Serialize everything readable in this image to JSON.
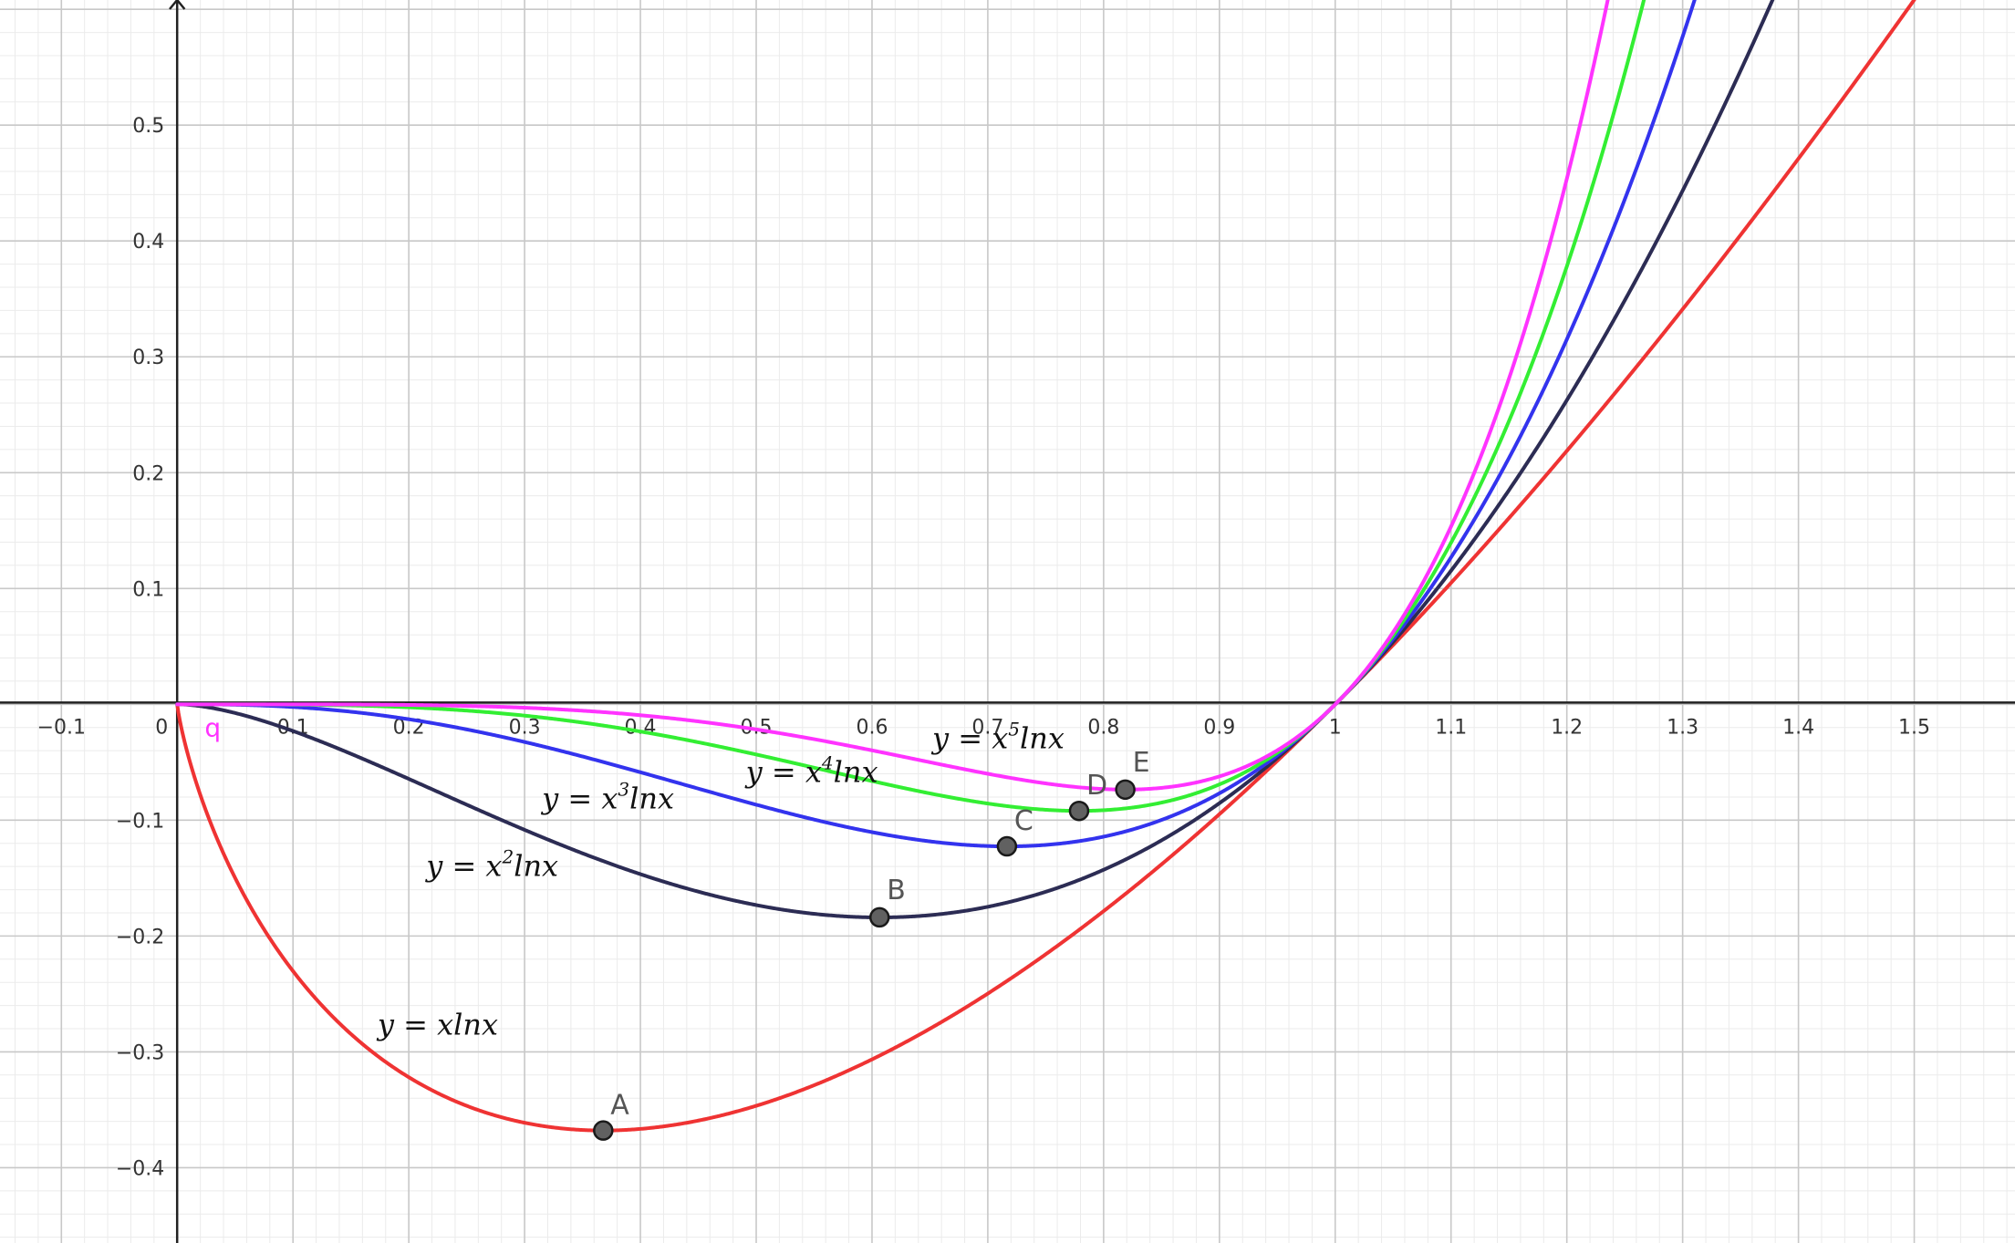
{
  "chart_data": {
    "type": "line",
    "xlim": [
      -0.153,
      1.587
    ],
    "ylim": [
      -0.465,
      0.608
    ],
    "grid": true,
    "x_ticks": [
      "−0.1",
      "0",
      "0.1",
      "0.2",
      "0.3",
      "0.4",
      "0.5",
      "0.6",
      "0.7",
      "0.8",
      "0.9",
      "1",
      "1.1",
      "1.2",
      "1.3",
      "1.4",
      "1.5"
    ],
    "y_ticks": [
      "0.5",
      "0.4",
      "0.3",
      "0.2",
      "0.1",
      "−0.1",
      "−0.2",
      "−0.3",
      "−0.4"
    ],
    "series": [
      {
        "name": "y = xlnx",
        "power": 1,
        "color": "#ef3333",
        "x_max": 1.5,
        "label": {
          "base": "y = xlnx",
          "sup": ""
        }
      },
      {
        "name": "y = x²lnx",
        "power": 2,
        "color": "#2c2c54",
        "x_max": 1.5,
        "label": {
          "base": "y = x",
          "sup": "2",
          "tail": "lnx"
        }
      },
      {
        "name": "y = x³lnx",
        "power": 3,
        "color": "#3333ee",
        "x_max": 1.5,
        "label": {
          "base": "y = x",
          "sup": "3",
          "tail": "lnx"
        }
      },
      {
        "name": "y = x⁴lnx",
        "power": 4,
        "color": "#33ee33",
        "x_max": 1.5,
        "label": {
          "base": "y = x",
          "sup": "4",
          "tail": "lnx"
        }
      },
      {
        "name": "y = x⁵lnx",
        "power": 5,
        "color": "#ff33ff",
        "x_max": 1.5,
        "label": {
          "base": "y = x",
          "sup": "5",
          "tail": "lnx"
        }
      }
    ],
    "points": [
      {
        "label": "A",
        "x": 0.3679,
        "y": -0.3679
      },
      {
        "label": "B",
        "x": 0.6065,
        "y": -0.1839
      },
      {
        "label": "C",
        "x": 0.7165,
        "y": -0.1226
      },
      {
        "label": "D",
        "x": 0.7788,
        "y": -0.092
      },
      {
        "label": "E",
        "x": 0.8187,
        "y": -0.0736
      }
    ],
    "annotations": [
      {
        "text": "q",
        "x": 0.03,
        "y": -0.02,
        "color": "#ff33ff"
      }
    ]
  }
}
